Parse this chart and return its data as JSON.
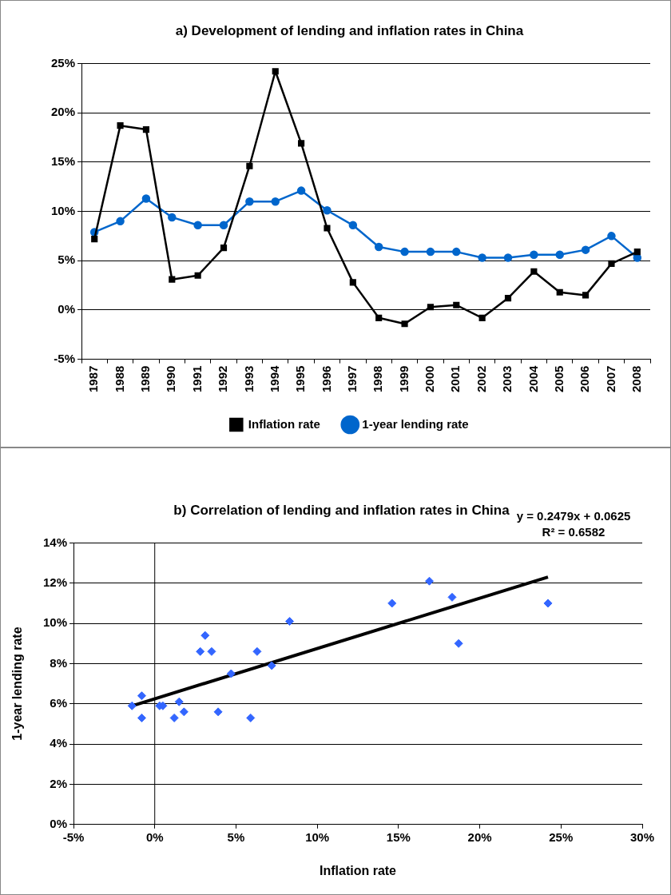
{
  "chart_data": [
    {
      "type": "line",
      "title": "a) Development of lending and inflation rates in China",
      "categories": [
        "1987",
        "1988",
        "1989",
        "1990",
        "1991",
        "1992",
        "1993",
        "1994",
        "1995",
        "1996",
        "1997",
        "1998",
        "1999",
        "2000",
        "2001",
        "2002",
        "2003",
        "2004",
        "2005",
        "2006",
        "2007",
        "2008"
      ],
      "series": [
        {
          "name": "Inflation rate",
          "color": "#000000",
          "marker": "square",
          "values": [
            7.2,
            18.7,
            18.3,
            3.1,
            3.5,
            6.3,
            14.6,
            24.2,
            16.9,
            8.3,
            2.8,
            -0.8,
            -1.4,
            0.3,
            0.5,
            -0.8,
            1.2,
            3.9,
            1.8,
            1.5,
            4.7,
            5.9
          ]
        },
        {
          "name": "1-year lending rate",
          "color": "#0066cc",
          "marker": "circle",
          "values": [
            7.9,
            9.0,
            11.3,
            9.4,
            8.6,
            8.6,
            11.0,
            11.0,
            12.1,
            10.1,
            8.6,
            6.4,
            5.9,
            5.9,
            5.9,
            5.3,
            5.3,
            5.6,
            5.6,
            6.1,
            7.5,
            5.3
          ]
        }
      ],
      "ylim": [
        -5,
        25
      ],
      "yticks": [
        {
          "value": -5,
          "label": "-5%"
        },
        {
          "value": 0,
          "label": "0%"
        },
        {
          "value": 5,
          "label": "5%"
        },
        {
          "value": 10,
          "label": "10%"
        },
        {
          "value": 15,
          "label": "15%"
        },
        {
          "value": 20,
          "label": "20%"
        },
        {
          "value": 25,
          "label": "25%"
        }
      ],
      "grid": "y",
      "legend": "bottom"
    },
    {
      "type": "scatter",
      "title": "b) Correlation of lending and inflation rates in China",
      "xlabel": "Inflation rate",
      "ylabel": "1-year lending rate",
      "series": [
        {
          "type": "scatter",
          "color": "#3366ff",
          "marker": "diamond",
          "x": [
            7.2,
            18.7,
            18.3,
            3.1,
            3.5,
            6.3,
            14.6,
            24.2,
            16.9,
            8.3,
            2.8,
            -0.8,
            -1.4,
            0.3,
            0.5,
            -0.8,
            1.2,
            3.9,
            1.8,
            1.5,
            4.7,
            5.9
          ],
          "values": [
            7.9,
            9.0,
            11.3,
            9.4,
            8.6,
            8.6,
            11.0,
            11.0,
            12.1,
            10.1,
            8.6,
            6.4,
            5.9,
            5.9,
            5.9,
            5.3,
            5.3,
            5.6,
            5.6,
            6.1,
            7.5,
            5.3
          ]
        },
        {
          "type": "line",
          "color": "#000000",
          "marker": "none",
          "x": [
            -1.4,
            24.2
          ],
          "values": [
            5.9,
            12.3
          ]
        }
      ],
      "xlim": [
        -5,
        30
      ],
      "xticks": [
        {
          "value": -5,
          "label": "-5%"
        },
        {
          "value": 0,
          "label": "0%"
        },
        {
          "value": 5,
          "label": "5%"
        },
        {
          "value": 10,
          "label": "10%"
        },
        {
          "value": 15,
          "label": "15%"
        },
        {
          "value": 20,
          "label": "20%"
        },
        {
          "value": 25,
          "label": "25%"
        },
        {
          "value": 30,
          "label": "30%"
        }
      ],
      "ylim": [
        0,
        14
      ],
      "yticks": [
        {
          "value": 0,
          "label": "0%"
        },
        {
          "value": 2,
          "label": "2%"
        },
        {
          "value": 4,
          "label": "4%"
        },
        {
          "value": 6,
          "label": "6%"
        },
        {
          "value": 8,
          "label": "8%"
        },
        {
          "value": 10,
          "label": "10%"
        },
        {
          "value": 12,
          "label": "12%"
        },
        {
          "value": 14,
          "label": "14%"
        }
      ],
      "grid": "y",
      "ref_lines": [
        {
          "axis": "x",
          "value": 0,
          "color": "#000000"
        }
      ],
      "annotations": [
        "y = 0.2479x + 0.0625",
        "R² = 0.6582"
      ]
    }
  ]
}
